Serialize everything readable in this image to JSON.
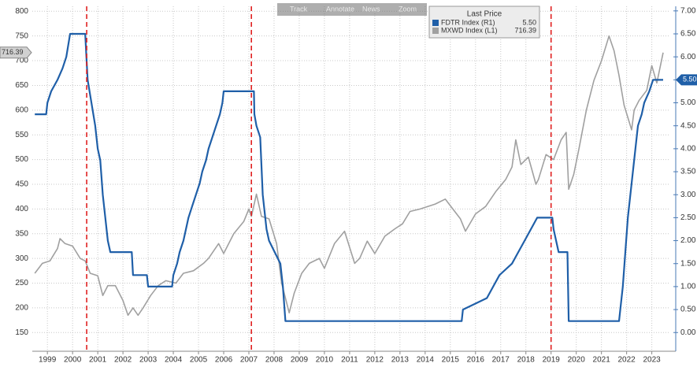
{
  "toolbar": [
    "Track",
    "Annotate",
    "News",
    "Zoom"
  ],
  "chart_data": {
    "type": "line",
    "legend_title": "Last Price",
    "series": [
      {
        "name": "FDTR Index (R1)",
        "color": "#1f5fa8",
        "axis": "y2",
        "last_label": "5.50",
        "x": [
          1999.0,
          1999.45,
          1999.5,
          1999.65,
          1999.9,
          2000.1,
          2000.25,
          2000.4,
          2001.0,
          2001.05,
          2001.1,
          2001.25,
          2001.4,
          2001.5,
          2001.6,
          2001.7,
          2001.8,
          2001.9,
          2002.0,
          2002.85,
          2002.9,
          2003.45,
          2003.5,
          2004.45,
          2004.5,
          2004.65,
          2004.75,
          2004.9,
          2005.0,
          2005.1,
          2005.25,
          2005.4,
          2005.55,
          2005.65,
          2005.8,
          2005.9,
          2006.05,
          2006.2,
          2006.35,
          2006.45,
          2006.5,
          2007.7,
          2007.72,
          2007.8,
          2007.95,
          2008.05,
          2008.2,
          2008.3,
          2008.75,
          2008.85,
          2008.95,
          2015.95,
          2016.0,
          2016.95,
          2017.2,
          2017.45,
          2017.95,
          2018.2,
          2018.45,
          2018.7,
          2018.95,
          2019.55,
          2019.6,
          2019.7,
          2019.8,
          2020.15,
          2020.2,
          2022.2,
          2022.25,
          2022.35,
          2022.45,
          2022.55,
          2022.7,
          2022.85,
          2022.95,
          2023.1,
          2023.2,
          2023.4,
          2023.55,
          2023.95
        ],
        "values": [
          4.75,
          4.75,
          5.0,
          5.25,
          5.5,
          5.75,
          6.0,
          6.5,
          6.5,
          6.0,
          5.5,
          5.0,
          4.5,
          4.0,
          3.75,
          3.0,
          2.5,
          2.0,
          1.75,
          1.75,
          1.25,
          1.25,
          1.0,
          1.0,
          1.25,
          1.5,
          1.75,
          2.0,
          2.25,
          2.5,
          2.75,
          3.0,
          3.25,
          3.5,
          3.75,
          4.0,
          4.25,
          4.5,
          4.75,
          5.0,
          5.25,
          5.25,
          4.75,
          4.5,
          4.25,
          3.0,
          2.25,
          2.0,
          1.5,
          1.0,
          0.25,
          0.25,
          0.5,
          0.75,
          1.0,
          1.25,
          1.5,
          1.75,
          2.0,
          2.25,
          2.5,
          2.5,
          2.25,
          2.0,
          1.75,
          1.75,
          0.25,
          0.25,
          0.5,
          1.0,
          1.75,
          2.5,
          3.25,
          4.0,
          4.5,
          4.75,
          5.0,
          5.25,
          5.5,
          5.5
        ]
      },
      {
        "name": "MXWD Index (L1)",
        "color": "#a0a0a0",
        "axis": "y",
        "last_label": "716.39",
        "x": [
          1999.0,
          1999.3,
          1999.6,
          1999.9,
          2000.0,
          2000.2,
          2000.5,
          2000.8,
          2001.0,
          2001.2,
          2001.5,
          2001.7,
          2001.9,
          2002.2,
          2002.5,
          2002.7,
          2002.9,
          2003.1,
          2003.3,
          2003.6,
          2003.9,
          2004.2,
          2004.6,
          2004.9,
          2005.3,
          2005.7,
          2005.9,
          2006.3,
          2006.5,
          2006.9,
          2007.3,
          2007.5,
          2007.6,
          2007.8,
          2008.0,
          2008.3,
          2008.6,
          2008.8,
          2009.1,
          2009.3,
          2009.6,
          2009.9,
          2010.3,
          2010.5,
          2010.9,
          2011.3,
          2011.7,
          2011.9,
          2012.2,
          2012.5,
          2012.9,
          2013.3,
          2013.6,
          2013.9,
          2014.3,
          2014.6,
          2014.9,
          2015.3,
          2015.6,
          2015.9,
          2016.1,
          2016.5,
          2016.9,
          2017.3,
          2017.7,
          2017.95,
          2018.1,
          2018.3,
          2018.6,
          2018.9,
          2019.0,
          2019.3,
          2019.6,
          2019.9,
          2020.1,
          2020.2,
          2020.4,
          2020.6,
          2020.9,
          2021.2,
          2021.5,
          2021.8,
          2022.0,
          2022.2,
          2022.4,
          2022.7,
          2022.8,
          2023.0,
          2023.3,
          2023.5,
          2023.7,
          2023.95
        ],
        "values": [
          270,
          290,
          295,
          320,
          340,
          330,
          325,
          300,
          295,
          270,
          265,
          225,
          245,
          245,
          215,
          185,
          200,
          185,
          200,
          225,
          245,
          255,
          250,
          270,
          275,
          290,
          300,
          330,
          310,
          350,
          375,
          400,
          385,
          430,
          385,
          380,
          330,
          250,
          190,
          230,
          270,
          290,
          300,
          280,
          330,
          355,
          290,
          300,
          335,
          310,
          345,
          360,
          370,
          395,
          400,
          405,
          410,
          420,
          400,
          380,
          355,
          390,
          405,
          435,
          460,
          485,
          540,
          490,
          505,
          450,
          460,
          510,
          500,
          540,
          555,
          440,
          470,
          520,
          600,
          660,
          700,
          750,
          720,
          670,
          610,
          560,
          600,
          620,
          640,
          690,
          655,
          716.39
        ]
      }
    ],
    "vlines": [
      2001.06,
      2007.6,
      2019.5
    ],
    "vline_color": "#e02020",
    "xlim": [
      1998.9,
      2024.2
    ],
    "xticks": [
      {
        "value": 1999.5,
        "label": "1999"
      },
      {
        "value": 2000.5,
        "label": "2000"
      },
      {
        "value": 2001.5,
        "label": "2001"
      },
      {
        "value": 2002.5,
        "label": "2002"
      },
      {
        "value": 2003.5,
        "label": "2003"
      },
      {
        "value": 2004.5,
        "label": "2004"
      },
      {
        "value": 2005.5,
        "label": "2005"
      },
      {
        "value": 2006.5,
        "label": "2006"
      },
      {
        "value": 2007.5,
        "label": "2007"
      },
      {
        "value": 2008.5,
        "label": "2008"
      },
      {
        "value": 2009.5,
        "label": "2009"
      },
      {
        "value": 2010.5,
        "label": "2010"
      },
      {
        "value": 2011.5,
        "label": "2011"
      },
      {
        "value": 2012.5,
        "label": "2012"
      },
      {
        "value": 2013.5,
        "label": "2013"
      },
      {
        "value": 2014.5,
        "label": "2014"
      },
      {
        "value": 2015.5,
        "label": "2015"
      },
      {
        "value": 2016.5,
        "label": "2016"
      },
      {
        "value": 2017.5,
        "label": "2017"
      },
      {
        "value": 2018.5,
        "label": "2018"
      },
      {
        "value": 2019.5,
        "label": "2019"
      },
      {
        "value": 2020.5,
        "label": "2020"
      },
      {
        "value": 2021.5,
        "label": "2021"
      },
      {
        "value": 2022.5,
        "label": "2022"
      },
      {
        "value": 2023.5,
        "label": "2023"
      }
    ],
    "ylim": [
      125,
      810
    ],
    "yticks": [
      150,
      200,
      250,
      300,
      350,
      400,
      450,
      500,
      550,
      600,
      650,
      700,
      750,
      800
    ],
    "y2lim": [
      -0.27,
      7.1
    ],
    "y2ticks": [
      {
        "value": 0,
        "label": "0.00"
      },
      {
        "value": 0.5,
        "label": "0.50"
      },
      {
        "value": 1,
        "label": "1.00"
      },
      {
        "value": 1.5,
        "label": "1.50"
      },
      {
        "value": 2,
        "label": "2.00"
      },
      {
        "value": 2.5,
        "label": "2.50"
      },
      {
        "value": 3,
        "label": "3.00"
      },
      {
        "value": 3.5,
        "label": "3.50"
      },
      {
        "value": 4,
        "label": "4.00"
      },
      {
        "value": 4.5,
        "label": "4.50"
      },
      {
        "value": 5,
        "label": "5.00"
      },
      {
        "value": 5.5,
        "label": "5.50"
      },
      {
        "value": 6,
        "label": "6.00"
      },
      {
        "value": 6.5,
        "label": "6.50"
      },
      {
        "value": 7,
        "label": "7.00"
      }
    ],
    "grid": true
  }
}
